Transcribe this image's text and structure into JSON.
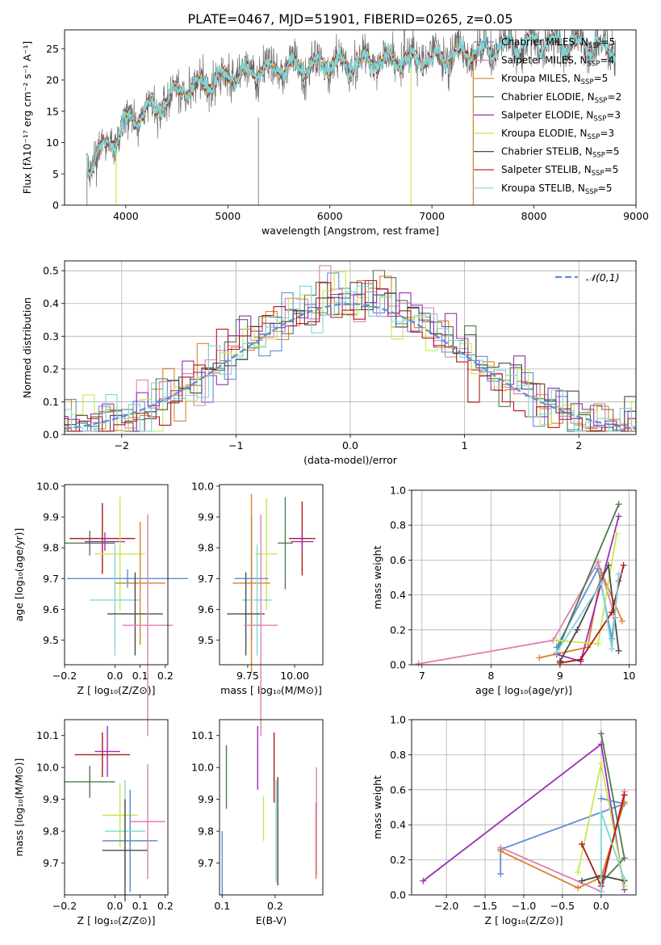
{
  "figure_title": "PLATE=0467, MJD=51901, FIBERID=0265, z=0.05",
  "colors": {
    "chabrier_miles": "#5b8fd6",
    "salpeter_miles": "#e07fb0",
    "kroupa_miles": "#d9822b",
    "chabrier_elodie": "#4f7a4f",
    "salpeter_elodie": "#9a2fb5",
    "kroupa_elodie": "#c9e84a",
    "chabrier_stelib": "#4a4a4a",
    "salpeter_stelib": "#b01818",
    "kroupa_stelib": "#7fd6d6"
  },
  "chart_data": [
    {
      "id": "spectrum",
      "type": "line",
      "title": "PLATE=0467, MJD=51901, FIBERID=0265, z=0.05",
      "xlabel": "wavelength [Angstrom, rest frame]",
      "ylabel": "Flux [f_λ 10^-17 erg cm^-2 s^-1 A^-1]",
      "xlim": [
        3400,
        9000
      ],
      "ylim": [
        0,
        28
      ],
      "xticks": [
        4000,
        5000,
        6000,
        7000,
        8000,
        9000
      ],
      "yticks": [
        0,
        5,
        10,
        15,
        20,
        25
      ],
      "grid": false,
      "legend_position": "right",
      "legend": [
        {
          "label": "Chabrier MILES, N",
          "sub": "SSP",
          "tail": "=5",
          "color": "chabrier_miles"
        },
        {
          "label": "Salpeter MILES, N",
          "sub": "SSP",
          "tail": "=4",
          "color": "salpeter_miles"
        },
        {
          "label": "Kroupa MILES, N",
          "sub": "SSP",
          "tail": "=5",
          "color": "kroupa_miles"
        },
        {
          "label": "Chabrier ELODIE, N",
          "sub": "SSP",
          "tail": "=2",
          "color": "chabrier_elodie"
        },
        {
          "label": "Salpeter ELODIE, N",
          "sub": "SSP",
          "tail": "=3",
          "color": "salpeter_elodie"
        },
        {
          "label": "Kroupa ELODIE, N",
          "sub": "SSP",
          "tail": "=3",
          "color": "kroupa_elodie"
        },
        {
          "label": "Chabrier STELIB, N",
          "sub": "SSP",
          "tail": "=5",
          "color": "chabrier_stelib"
        },
        {
          "label": "Salpeter STELIB, N",
          "sub": "SSP",
          "tail": "=5",
          "color": "salpeter_stelib"
        },
        {
          "label": "Kroupa STELIB, N",
          "sub": "SSP",
          "tail": "=5",
          "color": "kroupa_stelib"
        }
      ],
      "continuum": {
        "x": [
          3620,
          3700,
          3800,
          3900,
          4000,
          4100,
          4200,
          4300,
          4400,
          4500,
          4700,
          5000,
          5300,
          5600,
          6000,
          6500,
          7000,
          7400,
          7800,
          8200,
          8600,
          8800
        ],
        "y": [
          6,
          8,
          9.5,
          10.5,
          13,
          14,
          15.5,
          15,
          17,
          18,
          19,
          20.5,
          21.5,
          22,
          22.5,
          23,
          23.5,
          24.5,
          25.5,
          26,
          25.5,
          25
        ]
      }
    },
    {
      "id": "residuals",
      "type": "line",
      "xlabel": "(data-model)/error",
      "ylabel": "Normed distribution",
      "xlim": [
        -2.5,
        2.5
      ],
      "ylim": [
        0,
        0.53
      ],
      "xticks": [
        -2,
        -1,
        0,
        1,
        2
      ],
      "yticks": [
        0.0,
        0.1,
        0.2,
        0.3,
        0.4,
        0.5
      ],
      "grid": true,
      "legend_position": "top-right",
      "reference_curve": {
        "name": "N(0,1)",
        "color": "#5b8fd6"
      }
    },
    {
      "id": "age_vs_Z",
      "type": "scatter",
      "xlabel": "Z [log10(Z/Z⊙)]",
      "ylabel": "age [log10(age/yr)]",
      "xlim": [
        -0.2,
        0.21
      ],
      "ylim": [
        9.42,
        10.005
      ],
      "xticks": [
        -0.2,
        0.0,
        0.1,
        0.2
      ],
      "yticks": [
        9.5,
        9.6,
        9.7,
        9.8,
        9.9,
        10.0
      ],
      "points": [
        {
          "color": "salpeter_stelib",
          "x": -0.05,
          "xerr": 0.13,
          "y": 9.83,
          "yerr": 0.115
        },
        {
          "color": "chabrier_elodie",
          "x": -0.1,
          "xerr": 0.1,
          "y": 9.815,
          "yerr": 0.04
        },
        {
          "color": "salpeter_elodie",
          "x": -0.04,
          "xerr": 0.08,
          "y": 9.82,
          "yerr": 0.03
        },
        {
          "color": "kroupa_elodie",
          "x": 0.02,
          "xerr": 0.1,
          "y": 9.78,
          "yerr": 0.185
        },
        {
          "color": "chabrier_miles",
          "x": 0.05,
          "xerr": 0.24,
          "y": 9.7,
          "yerr": 0.03
        },
        {
          "color": "kroupa_miles",
          "x": 0.1,
          "xerr": 0.1,
          "y": 9.685,
          "yerr": 0.2
        },
        {
          "color": "kroupa_stelib",
          "x": 0.0,
          "xerr": 0.1,
          "y": 9.63,
          "yerr": 0.18
        },
        {
          "color": "chabrier_stelib",
          "x": 0.08,
          "xerr": 0.11,
          "y": 9.585,
          "yerr": 0.135
        },
        {
          "color": "salpeter_miles",
          "x": 0.13,
          "xerr": 0.1,
          "y": 9.548,
          "yerr": 0.36
        }
      ]
    },
    {
      "id": "age_vs_mass",
      "type": "scatter",
      "xlabel": "mass [log10(M/M⊙)]",
      "ylabel": "",
      "xlim": [
        9.6,
        10.15
      ],
      "ylim": [
        9.42,
        10.005
      ],
      "xticks": [
        9.75,
        10.0
      ],
      "yticks": [
        9.5,
        9.6,
        9.7,
        9.8,
        9.9,
        10.0
      ],
      "points": [
        {
          "color": "salpeter_stelib",
          "x": 10.04,
          "xerr": 0.07,
          "y": 9.83,
          "yerr": 0.12
        },
        {
          "color": "chabrier_elodie",
          "x": 9.95,
          "xerr": 0.04,
          "y": 9.815,
          "yerr": 0.15
        },
        {
          "color": "salpeter_elodie",
          "x": 10.04,
          "xerr": 0.06,
          "y": 9.82,
          "yerr": 0.03
        },
        {
          "color": "kroupa_elodie",
          "x": 9.85,
          "xerr": 0.06,
          "y": 9.78,
          "yerr": 0.18
        },
        {
          "color": "chabrier_miles",
          "x": 9.77,
          "xerr": 0.09,
          "y": 9.7,
          "yerr": 0.2
        },
        {
          "color": "kroupa_miles",
          "x": 9.77,
          "xerr": 0.1,
          "y": 9.685,
          "yerr": 0.29
        },
        {
          "color": "kroupa_stelib",
          "x": 9.8,
          "xerr": 0.08,
          "y": 9.63,
          "yerr": 0.18
        },
        {
          "color": "chabrier_stelib",
          "x": 9.74,
          "xerr": 0.1,
          "y": 9.585,
          "yerr": 0.135
        },
        {
          "color": "salpeter_miles",
          "x": 9.82,
          "xerr": 0.09,
          "y": 9.548,
          "yerr": 0.36
        }
      ]
    },
    {
      "id": "weight_vs_age",
      "type": "line",
      "xlabel": "age [log10(age/yr)]",
      "ylabel": "mass weight",
      "xlim": [
        6.85,
        10.1
      ],
      "ylim": [
        0,
        1.0
      ],
      "xticks": [
        7,
        8,
        9,
        10
      ],
      "yticks": [
        0.0,
        0.2,
        0.4,
        0.6,
        0.8,
        1.0
      ],
      "grid": true,
      "series": [
        {
          "color": "salpeter_miles",
          "x": [
            6.95,
            8.9,
            9.55,
            9.8
          ],
          "y": [
            0.005,
            0.14,
            0.59,
            0.27
          ]
        },
        {
          "color": "chabrier_miles",
          "x": [
            8.95,
            9.55,
            9.75,
            9.85
          ],
          "y": [
            0.1,
            0.55,
            0.15,
            0.48
          ]
        },
        {
          "color": "kroupa_miles",
          "x": [
            8.7,
            9.4,
            9.6,
            9.9
          ],
          "y": [
            0.04,
            0.1,
            0.53,
            0.25
          ]
        },
        {
          "color": "chabrier_elodie",
          "x": [
            8.95,
            9.85
          ],
          "y": [
            0.07,
            0.92
          ]
        },
        {
          "color": "salpeter_elodie",
          "x": [
            8.95,
            9.3,
            9.85
          ],
          "y": [
            0.06,
            0.02,
            0.85
          ]
        },
        {
          "color": "kroupa_elodie",
          "x": [
            8.95,
            9.55,
            9.82
          ],
          "y": [
            0.14,
            0.12,
            0.75
          ]
        },
        {
          "color": "chabrier_stelib",
          "x": [
            9.0,
            9.25,
            9.7,
            9.85
          ],
          "y": [
            0.02,
            0.2,
            0.57,
            0.08
          ]
        },
        {
          "color": "salpeter_stelib",
          "x": [
            9.0,
            9.3,
            9.75,
            9.92
          ],
          "y": [
            0.01,
            0.03,
            0.3,
            0.57
          ]
        },
        {
          "color": "kroupa_stelib",
          "x": [
            8.95,
            9.6,
            9.75,
            9.85
          ],
          "y": [
            0.07,
            0.47,
            0.09,
            0.52
          ]
        }
      ]
    },
    {
      "id": "mass_vs_Z",
      "type": "scatter",
      "xlabel": "Z [log10(Z/Z⊙)]",
      "ylabel": "mass [log10(M/M⊙)]",
      "xlim": [
        -0.2,
        0.21
      ],
      "ylim": [
        9.6,
        10.15
      ],
      "xticks": [
        -0.2,
        0.0,
        0.1,
        0.2
      ],
      "yticks": [
        9.7,
        9.8,
        9.9,
        10.0,
        10.1
      ],
      "points": [
        {
          "color": "salpeter_stelib",
          "x": -0.05,
          "xerr": 0.11,
          "y": 10.04,
          "yerr": 0.07
        },
        {
          "color": "salpeter_elodie",
          "x": -0.03,
          "xerr": 0.05,
          "y": 10.05,
          "yerr": 0.08
        },
        {
          "color": "kroupa_elodie",
          "x": 0.02,
          "xerr": 0.07,
          "y": 9.85,
          "yerr": 0.1
        },
        {
          "color": "chabrier_elodie",
          "x": -0.1,
          "xerr": 0.1,
          "y": 9.955,
          "yerr": 0.05
        },
        {
          "color": "kroupa_miles",
          "x": 0.06,
          "xerr": 0.1,
          "y": 9.77,
          "yerr": 0.16
        },
        {
          "color": "chabrier_miles",
          "x": 0.06,
          "xerr": 0.11,
          "y": 9.77,
          "yerr": 0.16
        },
        {
          "color": "kroupa_stelib",
          "x": 0.04,
          "xerr": 0.08,
          "y": 9.8,
          "yerr": 0.16
        },
        {
          "color": "chabrier_stelib",
          "x": 0.04,
          "xerr": 0.09,
          "y": 9.74,
          "yerr": 0.16
        },
        {
          "color": "salpeter_miles",
          "x": 0.13,
          "xerr": 0.07,
          "y": 9.83,
          "yerr": 0.18
        }
      ]
    },
    {
      "id": "mass_vs_EBV",
      "type": "scatter",
      "xlabel": "E(B-V)",
      "ylabel": "",
      "xlim": [
        0.095,
        0.29
      ],
      "ylim": [
        9.6,
        10.15
      ],
      "xticks": [
        0.1,
        0.2
      ],
      "yticks": [
        9.7,
        9.8,
        9.9,
        10.0,
        10.1
      ],
      "points": [
        {
          "color": "chabrier_elodie",
          "x": 0.108,
          "y": 9.97,
          "yerr": 0.1
        },
        {
          "color": "salpeter_elodie",
          "x": 0.167,
          "y": 10.03,
          "yerr": 0.1
        },
        {
          "color": "kroupa_elodie",
          "x": 0.178,
          "y": 9.84,
          "yerr": 0.07
        },
        {
          "color": "salpeter_stelib",
          "x": 0.198,
          "y": 10.0,
          "yerr": 0.11
        },
        {
          "color": "chabrier_stelib",
          "x": 0.205,
          "y": 9.8,
          "yerr": 0.17
        },
        {
          "color": "kroupa_stelib",
          "x": 0.202,
          "y": 9.8,
          "yerr": 0.16
        },
        {
          "color": "kroupa_miles",
          "x": 0.277,
          "y": 9.77,
          "yerr": 0.12
        },
        {
          "color": "salpeter_miles",
          "x": 0.278,
          "y": 9.83,
          "yerr": 0.17
        },
        {
          "color": "chabrier_miles",
          "x": 0.1,
          "y": 9.7,
          "yerr": 0.1
        }
      ]
    },
    {
      "id": "weight_vs_Z",
      "type": "line",
      "xlabel": "Z [log10(Z/Z⊙)]",
      "ylabel": "mass weight",
      "xlim": [
        -2.45,
        0.45
      ],
      "ylim": [
        0,
        1.0
      ],
      "xticks": [
        -2.0,
        -1.5,
        -1.0,
        -0.5,
        0.0
      ],
      "yticks": [
        0.0,
        0.2,
        0.4,
        0.6,
        0.8,
        1.0
      ],
      "grid": true,
      "series": [
        {
          "color": "salpeter_elodie",
          "x": [
            -2.3,
            0.0,
            0.3
          ],
          "y": [
            0.08,
            0.86,
            0.03
          ]
        },
        {
          "color": "chabrier_miles",
          "x": [
            -1.3,
            -1.3,
            0.3,
            0.0
          ],
          "y": [
            0.12,
            0.26,
            0.52,
            0.55
          ]
        },
        {
          "color": "salpeter_miles",
          "x": [
            -1.3,
            0.0,
            0.3
          ],
          "y": [
            0.27,
            0.02,
            0.59
          ]
        },
        {
          "color": "kroupa_miles",
          "x": [
            -1.3,
            -0.3,
            0.0,
            0.3
          ],
          "y": [
            0.25,
            0.04,
            0.1,
            0.53
          ]
        },
        {
          "color": "kroupa_elodie",
          "x": [
            -0.3,
            0.0,
            0.3
          ],
          "y": [
            0.13,
            0.75,
            0.05
          ]
        },
        {
          "color": "chabrier_elodie",
          "x": [
            0.0,
            0.3,
            0.0
          ],
          "y": [
            0.92,
            0.21,
            0.07
          ]
        },
        {
          "color": "salpeter_stelib",
          "x": [
            -0.25,
            0.0,
            0.3
          ],
          "y": [
            0.29,
            0.05,
            0.57
          ]
        },
        {
          "color": "chabrier_stelib",
          "x": [
            -0.25,
            0.0,
            0.3
          ],
          "y": [
            0.08,
            0.11,
            0.08
          ]
        },
        {
          "color": "kroupa_stelib",
          "x": [
            0.0,
            0.0,
            0.3
          ],
          "y": [
            0.02,
            0.47,
            0.09
          ]
        }
      ]
    }
  ]
}
